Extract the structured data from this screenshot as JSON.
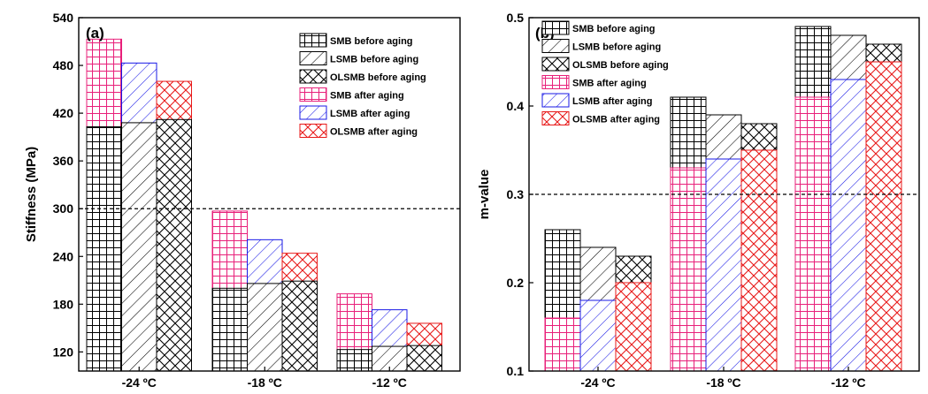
{
  "colors": {
    "before": "#000000",
    "SMB_after": "#e8207a",
    "LSMB_after": "#1a1ae6",
    "OLSMB_after": "#e81a1a"
  },
  "legend": {
    "items": [
      {
        "label": "SMB before aging",
        "pattern": "grid",
        "color": "#000000"
      },
      {
        "label": "LSMB before aging",
        "pattern": "diag",
        "color": "#000000"
      },
      {
        "label": "OLSMB before aging",
        "pattern": "cross",
        "color": "#000000"
      },
      {
        "label": "SMB after aging",
        "pattern": "grid",
        "color": "#e8207a"
      },
      {
        "label": "LSMB after aging",
        "pattern": "diag",
        "color": "#1a1ae6"
      },
      {
        "label": "OLSMB after aging",
        "pattern": "cross",
        "color": "#e81a1a"
      }
    ]
  },
  "chart_data": [
    {
      "panel_label": "(a)",
      "type": "bar",
      "ylabel": "Stiffness (MPa)",
      "ylim": [
        96,
        540
      ],
      "yticks": [
        120,
        180,
        240,
        300,
        360,
        420,
        480,
        540
      ],
      "categories": [
        "-24 ºC",
        "-18 ºC",
        "-12 ºC"
      ],
      "reference_line": 300,
      "series": [
        {
          "name": "SMB before aging",
          "values": [
            403,
            200,
            123
          ]
        },
        {
          "name": "LSMB before aging",
          "values": [
            408,
            206,
            127
          ]
        },
        {
          "name": "OLSMB before aging",
          "values": [
            412,
            209,
            128
          ]
        },
        {
          "name": "SMB after aging",
          "values": [
            513,
            297,
            193
          ]
        },
        {
          "name": "LSMB after aging",
          "values": [
            483,
            261,
            173
          ]
        },
        {
          "name": "OLSMB after aging",
          "values": [
            460,
            244,
            156
          ]
        }
      ]
    },
    {
      "panel_label": "(b)",
      "type": "bar",
      "ylabel": "m-value",
      "ylim": [
        0.1,
        0.5
      ],
      "yticks": [
        0.1,
        0.2,
        0.3,
        0.4,
        0.5
      ],
      "categories": [
        "-24 ºC",
        "-18 ºC",
        "-12 ºC"
      ],
      "reference_line": 0.3,
      "series": [
        {
          "name": "SMB before aging",
          "values": [
            0.26,
            0.41,
            0.49
          ]
        },
        {
          "name": "LSMB before aging",
          "values": [
            0.24,
            0.39,
            0.48
          ]
        },
        {
          "name": "OLSMB before aging",
          "values": [
            0.23,
            0.38,
            0.47
          ]
        },
        {
          "name": "SMB after aging",
          "values": [
            0.16,
            0.33,
            0.41
          ]
        },
        {
          "name": "LSMB after aging",
          "values": [
            0.18,
            0.34,
            0.43
          ]
        },
        {
          "name": "OLSMB after aging",
          "values": [
            0.2,
            0.35,
            0.45
          ]
        }
      ]
    }
  ]
}
